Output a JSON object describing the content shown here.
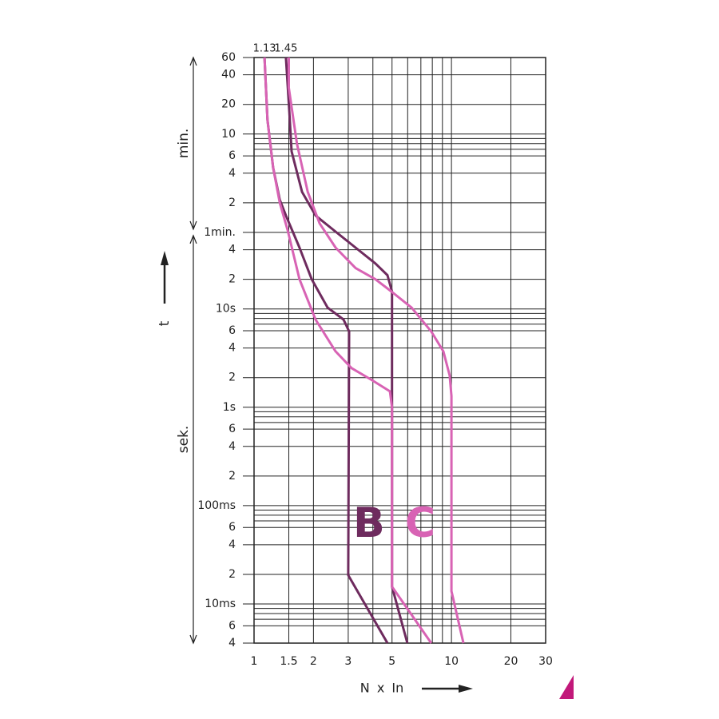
{
  "chart_data": {
    "type": "line",
    "xlabel": "N x In",
    "ylabel": "t",
    "log_x": true,
    "log_y": true,
    "grid": true,
    "xlim": [
      1,
      30
    ],
    "ylim": [
      0.004,
      3600
    ],
    "xticks": [
      1,
      1.5,
      2,
      3,
      5,
      10,
      20,
      30
    ],
    "xminor": [
      4,
      6,
      7,
      8,
      9
    ],
    "yticks": [
      {
        "value": 3600,
        "label": "60"
      },
      {
        "value": 2400,
        "label": "40"
      },
      {
        "value": 1200,
        "label": "20"
      },
      {
        "value": 600,
        "label": "10"
      },
      {
        "value": 360,
        "label": "6"
      },
      {
        "value": 240,
        "label": "4"
      },
      {
        "value": 120,
        "label": "2"
      },
      {
        "value": 60,
        "label": "1min."
      },
      {
        "value": 40,
        "label": "4"
      },
      {
        "value": 20,
        "label": "2"
      },
      {
        "value": 10,
        "label": "10s"
      },
      6,
      4,
      2,
      {
        "value": 1,
        "label": "1s"
      },
      {
        "value": 0.6,
        "label": "6"
      },
      {
        "value": 0.4,
        "label": "4"
      },
      {
        "value": 0.2,
        "label": "2"
      },
      {
        "value": 0.1,
        "label": "100ms"
      },
      {
        "value": 0.06,
        "label": "6"
      },
      {
        "value": 0.04,
        "label": "4"
      },
      {
        "value": 0.02,
        "label": "2"
      },
      {
        "value": 0.01,
        "label": "10ms"
      },
      {
        "value": 0.006,
        "label": "6"
      },
      {
        "value": 0.004,
        "label": "4"
      }
    ],
    "yminor": [
      0.007,
      0.008,
      0.009,
      0.07,
      0.08,
      0.09,
      0.7,
      0.8,
      0.9,
      7,
      8,
      9,
      420,
      480,
      540
    ],
    "ranges": [
      {
        "label": "min.",
        "from": 3600,
        "to": 60
      },
      {
        "label": "sek.",
        "from": 60,
        "to": 0.004
      }
    ],
    "top_labels": [
      {
        "value": 1.13,
        "label": "1.13"
      },
      {
        "value": 1.45,
        "label": "1.45"
      }
    ],
    "annotations": [
      {
        "text": "B",
        "color": "#6e2b5e"
      },
      {
        "text": "C",
        "color": "#d863b4"
      }
    ],
    "series": [
      {
        "color": "#6e2b5e",
        "x": [
          1.45,
          1.51,
          1.55,
          1.75,
          2.05,
          2.59,
          3.27,
          4.12,
          4.74,
          5,
          5,
          5.98
        ],
        "values": [
          3600,
          1000,
          400,
          155,
          89,
          61,
          42,
          29,
          22,
          15,
          0.015,
          0.004
        ]
      },
      {
        "color": "#6e2b5e",
        "x": [
          1.13,
          1.17,
          1.25,
          1.35,
          1.45,
          1.7,
          1.96,
          2.36,
          2.84,
          3.03,
          3,
          4.74
        ],
        "values": [
          3600,
          837,
          273,
          129,
          89,
          42,
          20,
          10.3,
          7.8,
          5.9,
          0.0196,
          0.004
        ]
      },
      {
        "color": "#d863b4",
        "x": [
          1.13,
          1.17,
          1.25,
          1.35,
          1.48,
          1.7,
          2.05,
          2.59,
          3.12,
          3.94,
          4.88,
          5,
          5,
          7.9
        ],
        "values": [
          3600,
          837,
          273,
          120,
          63,
          20,
          7.8,
          3.7,
          2.5,
          1.9,
          1.45,
          1.0,
          0.015,
          0.004
        ]
      },
      {
        "color": "#d863b4",
        "x": [
          1.5,
          1.5,
          1.65,
          1.87,
          2.15,
          2.59,
          3.27,
          4.12,
          4.97,
          6.28,
          7.9,
          9.1,
          9.8,
          10,
          10,
          11.5
        ],
        "values": [
          3600,
          1770,
          478,
          155,
          74,
          42,
          26,
          20,
          15,
          10.3,
          5.9,
          3.7,
          2.1,
          1.3,
          0.0135,
          0.004
        ]
      }
    ]
  }
}
